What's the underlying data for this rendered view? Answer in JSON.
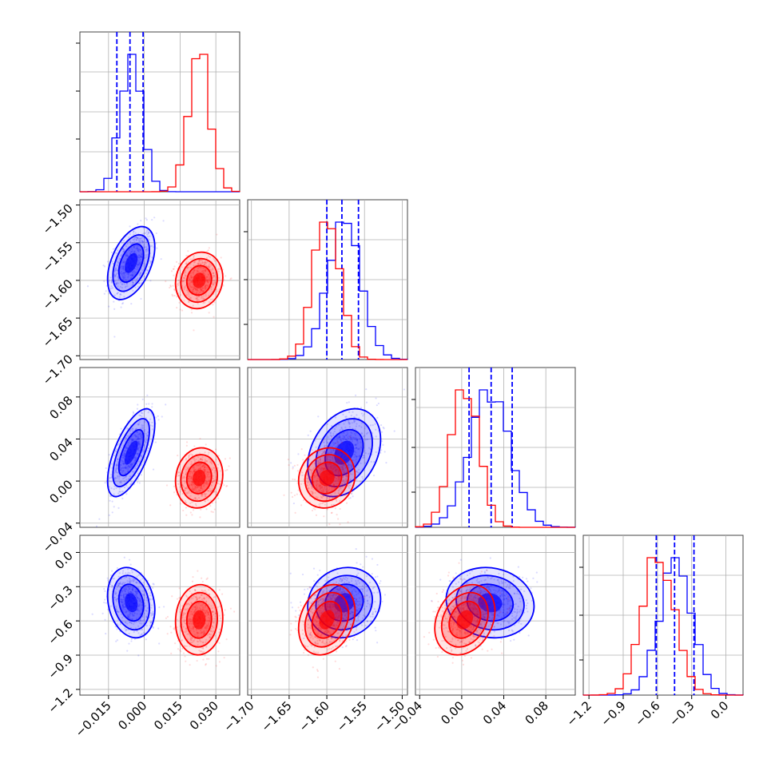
{
  "chart_data": {
    "type": "corner",
    "title": "",
    "parameters": [
      {
        "index": 0,
        "range": [
          -0.027,
          0.04
        ],
        "ticks": [
          "−0.015",
          "0.000",
          "0.015",
          "0.030"
        ],
        "tick_values": [
          -0.015,
          0.0,
          0.015,
          0.03
        ]
      },
      {
        "index": 1,
        "range": [
          -1.705,
          -1.493
        ],
        "ticks": [
          "−1.70",
          "−1.65",
          "−1.60",
          "−1.55",
          "−1.50"
        ],
        "tick_values": [
          -1.7,
          -1.65,
          -1.6,
          -1.55,
          -1.5
        ]
      },
      {
        "index": 2,
        "range": [
          -0.044,
          0.108
        ],
        "ticks": [
          "−0.04",
          "0.00",
          "0.04",
          "0.08"
        ],
        "tick_values": [
          -0.04,
          0.0,
          0.04,
          0.08
        ]
      },
      {
        "index": 3,
        "range": [
          -1.25,
          0.15
        ],
        "ticks": [
          "−1.2",
          "−0.9",
          "−0.6",
          "−0.3",
          "0.0"
        ],
        "tick_values": [
          -1.2,
          -0.9,
          -0.6,
          -0.3,
          0.0
        ]
      }
    ],
    "series": [
      {
        "color": "#0000ff",
        "means": [
          -0.0055,
          -1.577,
          0.027,
          -0.44
        ],
        "sigmas": [
          0.0045,
          0.022,
          0.019,
          0.14
        ],
        "quantiles": [
          [
            -0.0115,
            -0.006,
            -0.0005
          ],
          [
            -1.6,
            -1.58,
            -1.558
          ],
          [
            0.007,
            0.028,
            0.048
          ],
          [
            -0.61,
            -0.45,
            -0.28
          ]
        ],
        "correlations": {
          "1-0": 0.45,
          "2-0": 0.65,
          "2-1": 0.3,
          "3-0": -0.2,
          "3-1": 0.1,
          "3-2": -0.1
        }
      },
      {
        "color": "#ff0000",
        "means": [
          0.023,
          -1.6,
          0.003,
          -0.59
        ],
        "sigmas": [
          0.0045,
          0.017,
          0.013,
          0.14
        ],
        "quantiles": [],
        "correlations": {
          "1-0": 0.1,
          "2-0": 0.1,
          "2-1": 0.1,
          "3-0": 0.05,
          "3-1": 0.25,
          "3-2": 0.25
        }
      }
    ],
    "grid": true,
    "legend": "none"
  }
}
